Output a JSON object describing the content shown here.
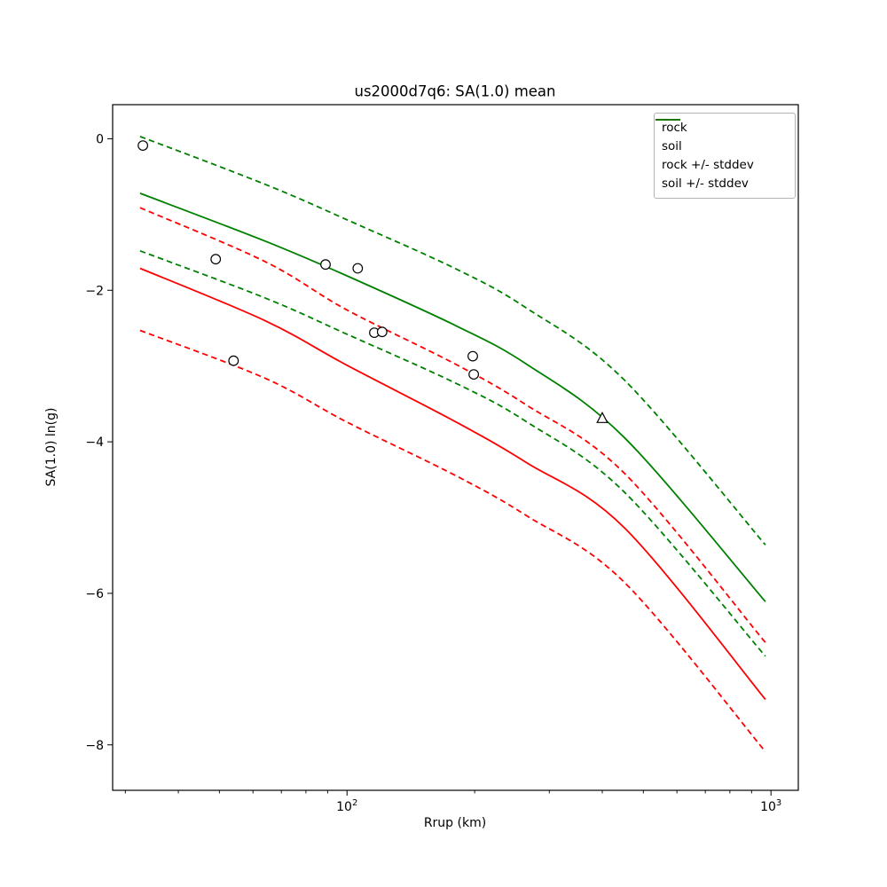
{
  "chart_data": {
    "type": "line",
    "title": "us2000d7q6: SA(1.0) mean",
    "xlabel": "Rrup (km)",
    "ylabel": "SA(1.0) ln(g)",
    "xscale": "log",
    "grid": false,
    "xlim": [
      28,
      1160
    ],
    "ylim": [
      -8.6,
      0.45
    ],
    "xticks": [
      {
        "value": 100,
        "mantissa": "10",
        "exponent": "2"
      },
      {
        "value": 1000,
        "mantissa": "10",
        "exponent": "3"
      }
    ],
    "yticks": [
      {
        "value": 0,
        "label": "0"
      },
      {
        "value": -2,
        "label": "−2"
      },
      {
        "value": -4,
        "label": "−4"
      },
      {
        "value": -6,
        "label": "−6"
      },
      {
        "value": -8,
        "label": "−8"
      }
    ],
    "x_km": [
      32.5,
      64,
      100,
      181,
      266,
      452,
      970
    ],
    "series": [
      {
        "key": "rock_plus_stddev",
        "color": "#ff0000",
        "line_style": "dashed",
        "values": [
          -0.91,
          -1.62,
          -2.26,
          -2.98,
          -3.52,
          -4.42,
          -6.65
        ]
      },
      {
        "key": "rock_minus_stddev",
        "color": "#ff0000",
        "line_style": "dashed",
        "values": [
          -2.53,
          -3.16,
          -3.74,
          -4.45,
          -4.98,
          -5.86,
          -8.09
        ]
      },
      {
        "key": "soil_plus_stddev",
        "color": "#008000",
        "line_style": "dashed",
        "values": [
          0.03,
          -0.6,
          -1.07,
          -1.72,
          -2.24,
          -3.19,
          -5.36
        ]
      },
      {
        "key": "soil_minus_stddev",
        "color": "#008000",
        "line_style": "dashed",
        "values": [
          -1.48,
          -2.1,
          -2.58,
          -3.23,
          -3.74,
          -4.67,
          -6.83
        ]
      },
      {
        "key": "rock_mean",
        "color": "#ff0000",
        "line_style": "solid",
        "values": [
          -1.71,
          -2.4,
          -2.99,
          -3.74,
          -4.28,
          -5.14,
          -7.4
        ]
      },
      {
        "key": "soil_mean",
        "color": "#008000",
        "line_style": "solid",
        "values": [
          -0.72,
          -1.35,
          -1.81,
          -2.47,
          -2.98,
          -3.95,
          -6.11
        ]
      }
    ],
    "legend": [
      {
        "label": "rock",
        "color": "#ff0000",
        "dashed": false
      },
      {
        "label": "soil",
        "color": "#008000",
        "dashed": false
      },
      {
        "label": "rock +/- stddev",
        "color": "#ff0000",
        "dashed": true
      },
      {
        "label": "soil +/- stddev",
        "color": "#008000",
        "dashed": true
      }
    ],
    "markers": [
      {
        "shape": "circle",
        "edge_color": "#000000",
        "face_color": "#ffffff",
        "points": [
          [
            33,
            -0.09
          ],
          [
            49,
            -1.59
          ],
          [
            54,
            -2.93
          ],
          [
            89,
            -1.66
          ],
          [
            106,
            -1.71
          ],
          [
            116,
            -2.56
          ],
          [
            121,
            -2.55
          ],
          [
            198,
            -2.87
          ],
          [
            199,
            -3.11
          ]
        ]
      },
      {
        "shape": "triangle",
        "edge_color": "#000000",
        "face_color": "#ffffff",
        "points": [
          [
            400,
            -3.69
          ]
        ]
      }
    ]
  }
}
